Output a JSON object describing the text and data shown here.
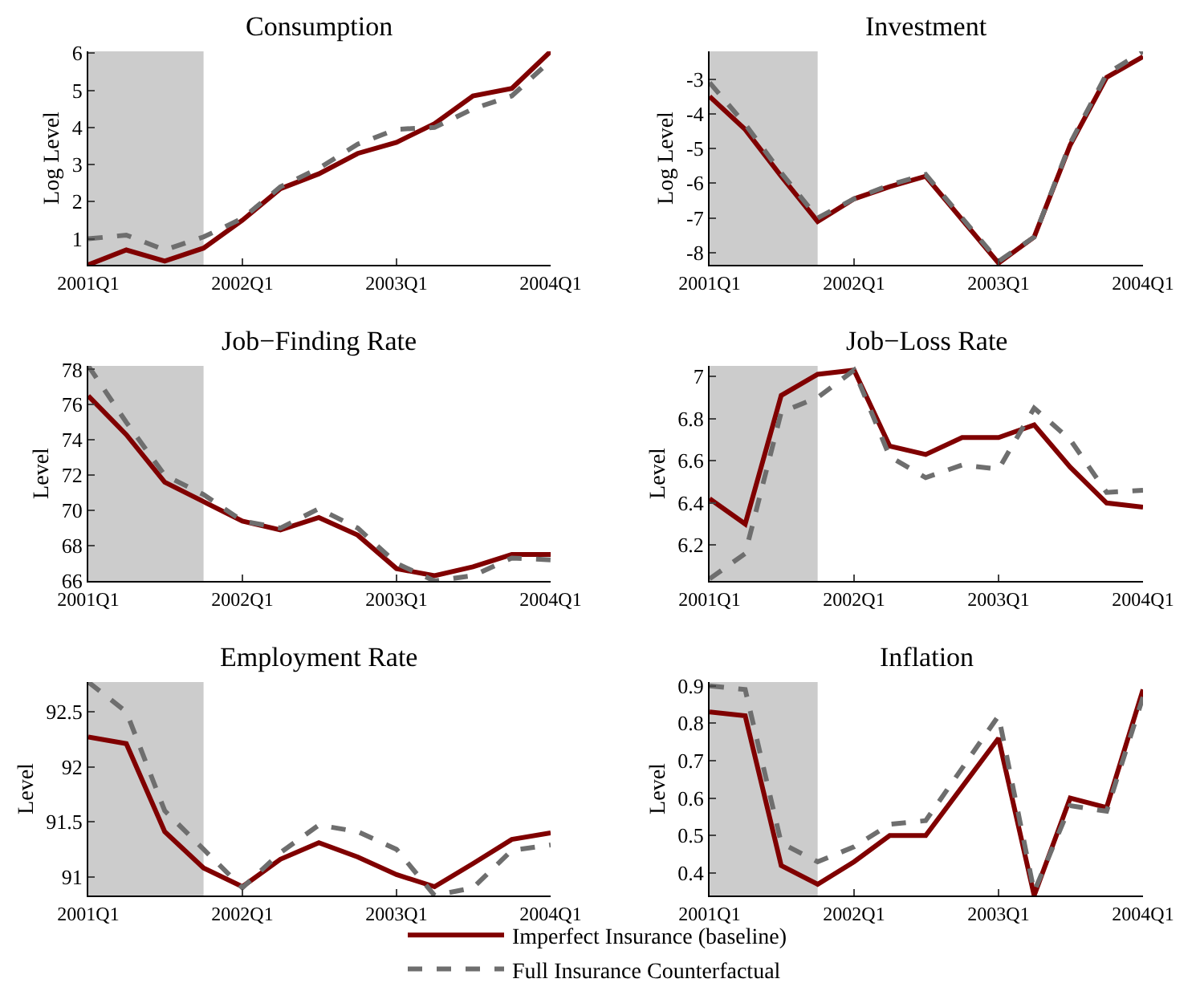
{
  "chart_data": [
    {
      "type": "line",
      "title": "Consumption",
      "ylabel": "Log Level",
      "x": [
        "2001-01",
        "2001-04",
        "2001-07",
        "2001-10",
        "2002-01",
        "2002-04",
        "2002-07",
        "2002-10",
        "2003-01",
        "2003-04",
        "2003-07",
        "2003-10",
        "2004-01"
      ],
      "xlim": [
        "2001-01",
        "2004-01"
      ],
      "xticks": [
        {
          "value": "2001-01",
          "label": "2001Q1"
        },
        {
          "value": "2002-01",
          "label": "2002Q1"
        },
        {
          "value": "2003-01",
          "label": "2003Q1"
        },
        {
          "value": "2004-01",
          "label": "2004Q1"
        }
      ],
      "ylim": [
        0.3,
        6.05
      ],
      "yticks": [
        1,
        2,
        3,
        4,
        5,
        6
      ],
      "bands": [
        {
          "axis": "x",
          "from": "2001-01",
          "to": "2001-10",
          "color": "#cccccc"
        }
      ],
      "grid": false,
      "series": [
        {
          "color": "#800000",
          "line_style": "solid",
          "values": [
            0.3,
            0.7,
            0.4,
            0.75,
            1.5,
            2.35,
            2.75,
            3.3,
            3.6,
            4.1,
            4.85,
            5.05,
            6.05
          ]
        },
        {
          "color": "#6e6e6e",
          "line_style": "dashed",
          "values": [
            1.0,
            1.1,
            0.7,
            1.05,
            1.55,
            2.4,
            2.9,
            3.55,
            3.95,
            4.0,
            4.5,
            4.85,
            5.8
          ]
        }
      ]
    },
    {
      "type": "line",
      "title": "Investment",
      "ylabel": "Log Level",
      "x": [
        "2001-01",
        "2001-04",
        "2001-07",
        "2001-10",
        "2002-01",
        "2002-04",
        "2002-07",
        "2002-10",
        "2003-01",
        "2003-04",
        "2003-07",
        "2003-10",
        "2004-01"
      ],
      "xlim": [
        "2001-01",
        "2004-01"
      ],
      "xticks": [
        {
          "value": "2001-01",
          "label": "2001Q1"
        },
        {
          "value": "2002-01",
          "label": "2002Q1"
        },
        {
          "value": "2003-01",
          "label": "2003Q1"
        },
        {
          "value": "2004-01",
          "label": "2004Q1"
        }
      ],
      "ylim": [
        -8.35,
        -2.2
      ],
      "yticks": [
        -8,
        -7,
        -6,
        -5,
        -4,
        -3
      ],
      "bands": [
        {
          "axis": "x",
          "from": "2001-01",
          "to": "2001-10",
          "color": "#cccccc"
        }
      ],
      "grid": false,
      "series": [
        {
          "color": "#800000",
          "line_style": "solid",
          "values": [
            -3.5,
            -4.45,
            -5.8,
            -7.1,
            -6.45,
            -6.1,
            -5.8,
            -7.05,
            -8.3,
            -7.55,
            -4.9,
            -2.95,
            -2.35
          ]
        },
        {
          "color": "#6e6e6e",
          "line_style": "dashed",
          "values": [
            -3.1,
            -4.3,
            -5.7,
            -7.0,
            -6.45,
            -6.05,
            -5.75,
            -7.0,
            -8.25,
            -7.55,
            -4.85,
            -2.85,
            -2.2
          ]
        }
      ]
    },
    {
      "type": "line",
      "title": "Job−Finding Rate",
      "ylabel": "Level",
      "x": [
        "2001-01",
        "2001-04",
        "2001-07",
        "2001-10",
        "2002-01",
        "2002-04",
        "2002-07",
        "2002-10",
        "2003-01",
        "2003-04",
        "2003-07",
        "2003-10",
        "2004-01"
      ],
      "xlim": [
        "2001-01",
        "2004-01"
      ],
      "xticks": [
        {
          "value": "2001-01",
          "label": "2001Q1"
        },
        {
          "value": "2002-01",
          "label": "2002Q1"
        },
        {
          "value": "2003-01",
          "label": "2003Q1"
        },
        {
          "value": "2004-01",
          "label": "2004Q1"
        }
      ],
      "ylim": [
        66,
        78.2
      ],
      "yticks": [
        66,
        68,
        70,
        72,
        74,
        76,
        78
      ],
      "bands": [
        {
          "axis": "x",
          "from": "2001-01",
          "to": "2001-10",
          "color": "#cccccc"
        }
      ],
      "grid": false,
      "series": [
        {
          "color": "#800000",
          "line_style": "solid",
          "values": [
            76.5,
            74.3,
            71.6,
            70.5,
            69.4,
            68.9,
            69.6,
            68.6,
            66.7,
            66.3,
            66.8,
            67.5,
            67.5
          ]
        },
        {
          "color": "#6e6e6e",
          "line_style": "dashed",
          "values": [
            78.2,
            75,
            72,
            70.9,
            69.4,
            69,
            70.1,
            69,
            67,
            66,
            66.3,
            67.3,
            67.2
          ]
        }
      ]
    },
    {
      "type": "line",
      "title": "Job−Loss Rate",
      "ylabel": "Level",
      "x": [
        "2001-01",
        "2001-04",
        "2001-07",
        "2001-10",
        "2002-01",
        "2002-04",
        "2002-07",
        "2002-10",
        "2003-01",
        "2003-04",
        "2003-07",
        "2003-10",
        "2004-01"
      ],
      "xlim": [
        "2001-01",
        "2004-01"
      ],
      "xticks": [
        {
          "value": "2001-01",
          "label": "2001Q1"
        },
        {
          "value": "2002-01",
          "label": "2002Q1"
        },
        {
          "value": "2003-01",
          "label": "2003Q1"
        },
        {
          "value": "2004-01",
          "label": "2004Q1"
        }
      ],
      "ylim": [
        6.03,
        7.05
      ],
      "yticks": [
        6.2,
        6.4,
        6.6,
        6.8,
        7
      ],
      "bands": [
        {
          "axis": "x",
          "from": "2001-01",
          "to": "2001-10",
          "color": "#cccccc"
        }
      ],
      "grid": false,
      "series": [
        {
          "color": "#800000",
          "line_style": "solid",
          "values": [
            6.42,
            6.3,
            6.91,
            7.01,
            7.03,
            6.67,
            6.63,
            6.71,
            6.71,
            6.77,
            6.57,
            6.4,
            6.38
          ]
        },
        {
          "color": "#6e6e6e",
          "line_style": "dashed",
          "values": [
            6.04,
            6.16,
            6.83,
            6.9,
            7.03,
            6.62,
            6.52,
            6.58,
            6.56,
            6.85,
            6.7,
            6.45,
            6.46
          ]
        }
      ]
    },
    {
      "type": "line",
      "title": "Employment Rate",
      "ylabel": "Level",
      "x": [
        "2001-01",
        "2001-04",
        "2001-07",
        "2001-10",
        "2002-01",
        "2002-04",
        "2002-07",
        "2002-10",
        "2003-01",
        "2003-04",
        "2003-07",
        "2003-10",
        "2004-01"
      ],
      "xlim": [
        "2001-01",
        "2004-01"
      ],
      "xticks": [
        {
          "value": "2001-01",
          "label": "2001Q1"
        },
        {
          "value": "2002-01",
          "label": "2002Q1"
        },
        {
          "value": "2003-01",
          "label": "2003Q1"
        },
        {
          "value": "2004-01",
          "label": "2004Q1"
        }
      ],
      "ylim": [
        90.83,
        92.77
      ],
      "yticks": [
        91,
        91.5,
        92,
        92.5
      ],
      "bands": [
        {
          "axis": "x",
          "from": "2001-01",
          "to": "2001-10",
          "color": "#cccccc"
        }
      ],
      "grid": false,
      "series": [
        {
          "color": "#800000",
          "line_style": "solid",
          "values": [
            92.27,
            92.21,
            91.41,
            91.08,
            90.91,
            91.16,
            91.31,
            91.18,
            91.02,
            90.91,
            91.12,
            91.34,
            91.4
          ]
        },
        {
          "color": "#6e6e6e",
          "line_style": "dashed",
          "values": [
            92.77,
            92.5,
            91.6,
            91.25,
            90.9,
            91.22,
            91.47,
            91.41,
            91.25,
            90.83,
            90.9,
            91.24,
            91.29
          ]
        }
      ]
    },
    {
      "type": "line",
      "title": "Inflation",
      "ylabel": "Level",
      "x": [
        "2001-01",
        "2001-04",
        "2001-07",
        "2001-10",
        "2002-01",
        "2002-04",
        "2002-07",
        "2002-10",
        "2003-01",
        "2003-04",
        "2003-07",
        "2003-10",
        "2004-01"
      ],
      "xlim": [
        "2001-01",
        "2004-01"
      ],
      "xticks": [
        {
          "value": "2001-01",
          "label": "2001Q1"
        },
        {
          "value": "2002-01",
          "label": "2002Q1"
        },
        {
          "value": "2003-01",
          "label": "2003Q1"
        },
        {
          "value": "2004-01",
          "label": "2004Q1"
        }
      ],
      "ylim": [
        0.34,
        0.91
      ],
      "yticks": [
        0.4,
        0.5,
        0.6,
        0.7,
        0.8,
        0.9
      ],
      "bands": [
        {
          "axis": "x",
          "from": "2001-01",
          "to": "2001-10",
          "color": "#cccccc"
        }
      ],
      "grid": false,
      "legend": "bottom",
      "series": [
        {
          "name": "Imperfect Insurance (baseline)",
          "color": "#800000",
          "line_style": "solid",
          "values": [
            0.83,
            0.82,
            0.42,
            0.37,
            0.43,
            0.5,
            0.5,
            0.63,
            0.76,
            0.34,
            0.6,
            0.575,
            0.89
          ]
        },
        {
          "name": "Full Insurance Counterfactual",
          "color": "#6e6e6e",
          "line_style": "dashed",
          "values": [
            0.9,
            0.89,
            0.48,
            0.43,
            0.47,
            0.53,
            0.54,
            0.68,
            0.82,
            0.35,
            0.58,
            0.565,
            0.87
          ]
        }
      ]
    }
  ]
}
